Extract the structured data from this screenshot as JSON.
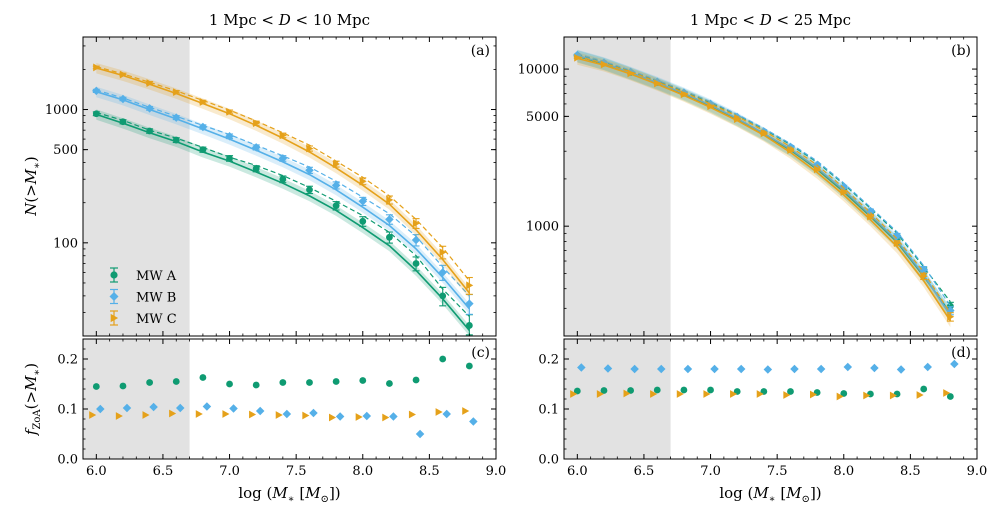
{
  "figure": {
    "x_axis_label": "log (M_* [M_⊙])",
    "top_ylabel": "N(>M_*)",
    "bottom_ylabel": "f_ZoA(>M_*)",
    "legend": [
      "MW A",
      "MW B",
      "MW C"
    ],
    "colors": {
      "MW A": "#0f9b72",
      "MW B": "#55b0e8",
      "MW C": "#e5a11a"
    },
    "shaded_region_x": [
      5.9,
      6.7
    ]
  },
  "chart_data": [
    {
      "panel": "a",
      "type": "line",
      "title": "1 Mpc < D < 10 Mpc",
      "tag": "(a)",
      "yscale": "log",
      "xlim": [
        5.9,
        9.0
      ],
      "ylim": [
        20,
        3500
      ],
      "xticks": [
        "6.0",
        "6.5",
        "7.0",
        "7.5",
        "8.0",
        "8.5",
        "9.0"
      ],
      "yticks": [
        {
          "v": 100,
          "label": "100"
        },
        {
          "v": 500,
          "label": "500"
        },
        {
          "v": 1000,
          "label": "1000"
        }
      ],
      "x": [
        6.0,
        6.2,
        6.4,
        6.6,
        6.8,
        7.0,
        7.2,
        7.4,
        7.6,
        7.8,
        8.0,
        8.2,
        8.4,
        8.6,
        8.8
      ],
      "series": [
        {
          "name": "MW A",
          "points": [
            930,
            810,
            690,
            590,
            500,
            430,
            360,
            300,
            250,
            190,
            145,
            110,
            70,
            40,
            24
          ],
          "dashed": [
            950,
            830,
            700,
            610,
            520,
            440,
            380,
            320,
            260,
            205,
            160,
            120,
            80,
            45,
            28
          ],
          "solid": [
            920,
            790,
            670,
            575,
            480,
            410,
            340,
            280,
            225,
            175,
            130,
            95,
            62,
            38,
            22
          ]
        },
        {
          "name": "MW B",
          "points": [
            1380,
            1200,
            1020,
            870,
            740,
            630,
            520,
            430,
            350,
            270,
            205,
            150,
            105,
            60,
            35
          ],
          "dashed": [
            1400,
            1220,
            1040,
            890,
            760,
            650,
            540,
            450,
            370,
            290,
            220,
            165,
            112,
            66,
            40
          ],
          "solid": [
            1360,
            1180,
            1000,
            850,
            715,
            600,
            495,
            405,
            325,
            250,
            185,
            135,
            90,
            55,
            32
          ]
        },
        {
          "name": "MW C",
          "points": [
            2070,
            1830,
            1580,
            1350,
            1140,
            960,
            790,
            640,
            510,
            390,
            290,
            210,
            140,
            85,
            48
          ],
          "dashed": [
            2100,
            1850,
            1600,
            1380,
            1170,
            990,
            820,
            670,
            540,
            410,
            310,
            225,
            150,
            92,
            52
          ],
          "solid": [
            2050,
            1800,
            1550,
            1320,
            1110,
            930,
            760,
            610,
            480,
            365,
            270,
            195,
            125,
            75,
            42
          ]
        }
      ]
    },
    {
      "panel": "b",
      "type": "line",
      "title": "1 Mpc < D < 25 Mpc",
      "tag": "(b)",
      "yscale": "log",
      "xlim": [
        5.9,
        9.0
      ],
      "ylim": [
        200,
        16000
      ],
      "xticks": [
        "6.0",
        "6.5",
        "7.0",
        "7.5",
        "8.0",
        "8.5",
        "9.0"
      ],
      "yticks": [
        {
          "v": 1000,
          "label": "1000"
        },
        {
          "v": 5000,
          "label": "5000"
        },
        {
          "v": 10000,
          "label": "10000"
        }
      ],
      "x": [
        6.0,
        6.2,
        6.4,
        6.6,
        6.8,
        7.0,
        7.2,
        7.4,
        7.6,
        7.8,
        8.0,
        8.2,
        8.4,
        8.6,
        8.8
      ],
      "series": [
        {
          "name": "MW A",
          "points": [
            12200,
            10900,
            9500,
            8200,
            7000,
            5900,
            4900,
            3950,
            3150,
            2400,
            1750,
            1230,
            850,
            520,
            310
          ],
          "dashed": [
            12400,
            11100,
            9700,
            8400,
            7200,
            6100,
            5100,
            4150,
            3300,
            2550,
            1850,
            1300,
            900,
            550,
            330
          ],
          "solid": [
            12100,
            10800,
            9400,
            8100,
            6900,
            5800,
            4750,
            3850,
            3050,
            2300,
            1650,
            1150,
            790,
            480,
            280
          ]
        },
        {
          "name": "MW B",
          "points": [
            12300,
            11000,
            9600,
            8300,
            7100,
            6000,
            4950,
            4000,
            3200,
            2450,
            1780,
            1250,
            870,
            530,
            290
          ],
          "dashed": [
            12500,
            11200,
            9800,
            8500,
            7300,
            6200,
            5150,
            4200,
            3350,
            2600,
            1880,
            1320,
            920,
            560,
            310
          ],
          "solid": [
            12200,
            10900,
            9500,
            8200,
            7000,
            5900,
            4850,
            3900,
            3100,
            2350,
            1700,
            1180,
            810,
            490,
            270
          ]
        },
        {
          "name": "MW C",
          "points": [
            11800,
            10700,
            9400,
            8100,
            6900,
            5800,
            4800,
            3900,
            3050,
            2300,
            1650,
            1150,
            780,
            480,
            265
          ],
          "dashed": [
            12000,
            10900,
            9600,
            8300,
            7100,
            6000,
            5000,
            4050,
            3200,
            2450,
            1750,
            1220,
            830,
            510,
            280
          ],
          "solid": [
            11700,
            10600,
            9300,
            8000,
            6800,
            5700,
            4700,
            3800,
            2950,
            2200,
            1580,
            1100,
            740,
            450,
            250
          ]
        }
      ]
    },
    {
      "panel": "c",
      "type": "scatter",
      "tag": "(c)",
      "xlim": [
        5.9,
        9.0
      ],
      "ylim": [
        0.0,
        0.24
      ],
      "xticks": [
        "6.0",
        "6.5",
        "7.0",
        "7.5",
        "8.0",
        "8.5",
        "9.0"
      ],
      "yticks": [
        {
          "v": 0.0,
          "label": "0.0"
        },
        {
          "v": 0.1,
          "label": "0.1"
        },
        {
          "v": 0.2,
          "label": "0.2"
        }
      ],
      "series": [
        {
          "name": "MW A",
          "x": [
            6.0,
            6.2,
            6.4,
            6.6,
            6.8,
            7.0,
            7.2,
            7.4,
            7.6,
            7.8,
            8.0,
            8.2,
            8.4,
            8.6,
            8.8
          ],
          "y": [
            0.145,
            0.146,
            0.153,
            0.155,
            0.163,
            0.15,
            0.148,
            0.153,
            0.153,
            0.155,
            0.157,
            0.151,
            0.158,
            0.2,
            0.186
          ]
        },
        {
          "name": "MW B",
          "x": [
            6.03,
            6.23,
            6.43,
            6.63,
            6.83,
            7.03,
            7.23,
            7.43,
            7.63,
            7.83,
            8.03,
            8.23,
            8.43,
            8.63,
            8.83
          ],
          "y": [
            0.1,
            0.102,
            0.104,
            0.102,
            0.105,
            0.101,
            0.096,
            0.09,
            0.092,
            0.085,
            0.086,
            0.085,
            0.05,
            0.09,
            0.075
          ]
        },
        {
          "name": "MW C",
          "x": [
            5.97,
            6.17,
            6.37,
            6.57,
            6.77,
            6.97,
            7.17,
            7.37,
            7.57,
            7.77,
            7.97,
            8.17,
            8.37,
            8.57,
            8.77
          ],
          "y": [
            0.088,
            0.086,
            0.088,
            0.091,
            0.09,
            0.09,
            0.089,
            0.088,
            0.087,
            0.083,
            0.084,
            0.083,
            0.089,
            0.094,
            0.096
          ]
        }
      ]
    },
    {
      "panel": "d",
      "type": "scatter",
      "tag": "(d)",
      "xlim": [
        5.9,
        9.0
      ],
      "ylim": [
        0.0,
        0.24
      ],
      "xticks": [
        "6.0",
        "6.5",
        "7.0",
        "7.5",
        "8.0",
        "8.5",
        "9.0"
      ],
      "yticks": [
        {
          "v": 0.0,
          "label": "0.0"
        },
        {
          "v": 0.1,
          "label": "0.1"
        },
        {
          "v": 0.2,
          "label": "0.2"
        }
      ],
      "series": [
        {
          "name": "MW A",
          "x": [
            6.0,
            6.2,
            6.4,
            6.6,
            6.8,
            7.0,
            7.2,
            7.4,
            7.6,
            7.8,
            8.0,
            8.2,
            8.4,
            8.6,
            8.8
          ],
          "y": [
            0.136,
            0.137,
            0.137,
            0.138,
            0.138,
            0.138,
            0.135,
            0.135,
            0.135,
            0.133,
            0.131,
            0.13,
            0.13,
            0.14,
            0.125
          ]
        },
        {
          "name": "MW B",
          "x": [
            6.03,
            6.23,
            6.43,
            6.63,
            6.83,
            7.03,
            7.23,
            7.43,
            7.63,
            7.83,
            8.03,
            8.23,
            8.43,
            8.63,
            8.83
          ],
          "y": [
            0.183,
            0.181,
            0.18,
            0.18,
            0.18,
            0.18,
            0.18,
            0.179,
            0.18,
            0.18,
            0.184,
            0.182,
            0.179,
            0.184,
            0.19
          ]
        },
        {
          "name": "MW C",
          "x": [
            5.97,
            6.17,
            6.37,
            6.57,
            6.77,
            6.97,
            7.17,
            7.37,
            7.57,
            7.77,
            7.97,
            8.17,
            8.37,
            8.57,
            8.77
          ],
          "y": [
            0.13,
            0.13,
            0.131,
            0.13,
            0.13,
            0.13,
            0.13,
            0.13,
            0.128,
            0.129,
            0.125,
            0.127,
            0.127,
            0.128,
            0.132
          ]
        }
      ]
    }
  ]
}
